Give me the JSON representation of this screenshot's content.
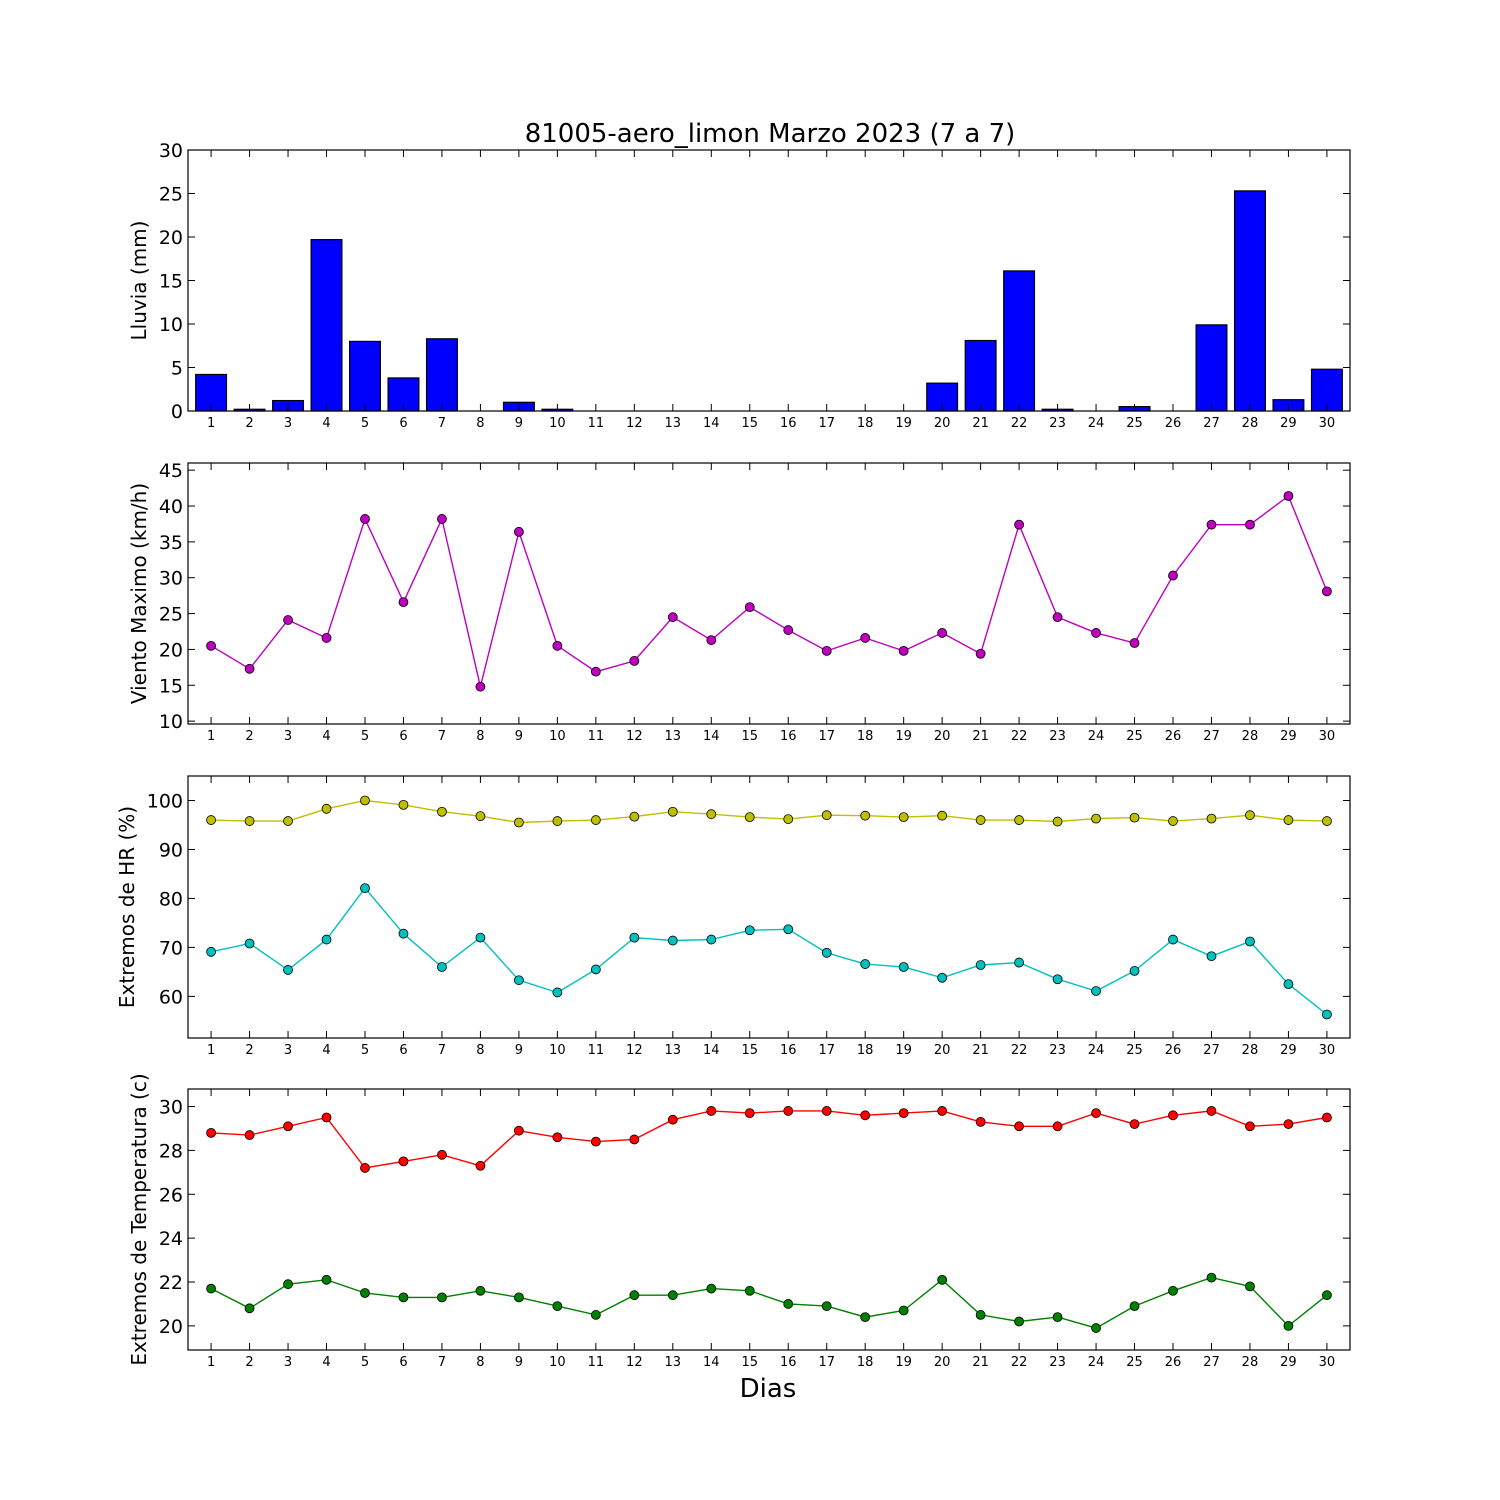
{
  "figure": {
    "title": "81005-aero_limon Marzo 2023  (7 a 7)",
    "xlabel": "Dias"
  },
  "chart_data": [
    {
      "type": "bar",
      "ylabel": "Lluvia (mm)",
      "ylim": [
        0,
        30
      ],
      "yticks": [
        0,
        5,
        10,
        15,
        20,
        25,
        30
      ],
      "categories": [
        1,
        2,
        3,
        4,
        5,
        6,
        7,
        8,
        9,
        10,
        11,
        12,
        13,
        14,
        15,
        16,
        17,
        18,
        19,
        20,
        21,
        22,
        23,
        24,
        25,
        26,
        27,
        28,
        29,
        30
      ],
      "series": [
        {
          "color": "#0000ff",
          "values": [
            4.2,
            0.2,
            1.2,
            19.7,
            8.0,
            3.8,
            8.3,
            0,
            1.0,
            0.2,
            0,
            0,
            0,
            0,
            0,
            0,
            0,
            0,
            0,
            3.2,
            8.1,
            16.1,
            0.2,
            0,
            0.5,
            0,
            9.9,
            25.3,
            1.3,
            4.8
          ]
        }
      ]
    },
    {
      "type": "line",
      "ylabel": "Viento Maximo (km/h)",
      "ylim": [
        9.6,
        46
      ],
      "yticks": [
        10,
        15,
        20,
        25,
        30,
        35,
        40,
        45
      ],
      "categories": [
        1,
        2,
        3,
        4,
        5,
        6,
        7,
        8,
        9,
        10,
        11,
        12,
        13,
        14,
        15,
        16,
        17,
        18,
        19,
        20,
        21,
        22,
        23,
        24,
        25,
        26,
        27,
        28,
        29,
        30
      ],
      "series": [
        {
          "color": "#bf00bf",
          "values": [
            20.5,
            17.3,
            24.1,
            21.6,
            38.2,
            26.6,
            38.2,
            14.8,
            36.4,
            20.5,
            16.9,
            18.4,
            24.5,
            21.3,
            25.9,
            22.7,
            19.8,
            21.6,
            19.8,
            22.3,
            19.4,
            37.4,
            24.5,
            22.3,
            20.9,
            30.3,
            37.4,
            37.4,
            41.4,
            28.1
          ]
        }
      ]
    },
    {
      "type": "line",
      "ylabel": "Extremos de HR (%)",
      "ylim": [
        51.5,
        105
      ],
      "yticks": [
        60,
        70,
        80,
        90,
        100
      ],
      "categories": [
        1,
        2,
        3,
        4,
        5,
        6,
        7,
        8,
        9,
        10,
        11,
        12,
        13,
        14,
        15,
        16,
        17,
        18,
        19,
        20,
        21,
        22,
        23,
        24,
        25,
        26,
        27,
        28,
        29,
        30
      ],
      "series": [
        {
          "color": "#bfbf00",
          "values": [
            96,
            95.8,
            95.8,
            98.3,
            100,
            99.1,
            97.7,
            96.8,
            95.5,
            95.8,
            96,
            96.7,
            97.7,
            97.2,
            96.6,
            96.2,
            97,
            96.9,
            96.6,
            96.9,
            96,
            96,
            95.7,
            96.3,
            96.5,
            95.8,
            96.3,
            97,
            96,
            95.8
          ]
        },
        {
          "color": "#00bfbf",
          "values": [
            69.1,
            70.8,
            65.4,
            71.6,
            82.1,
            72.8,
            66,
            72,
            63.3,
            60.8,
            65.5,
            72,
            71.4,
            71.6,
            73.5,
            73.7,
            68.9,
            66.6,
            66,
            63.8,
            66.4,
            66.9,
            63.5,
            61.1,
            65.2,
            71.6,
            68.2,
            71.2,
            62.5,
            56.3
          ]
        }
      ]
    },
    {
      "type": "line",
      "ylabel": "Extremos de Temperatura (c)",
      "ylim": [
        18.9,
        30.8
      ],
      "yticks": [
        20,
        22,
        24,
        26,
        28,
        30
      ],
      "categories": [
        1,
        2,
        3,
        4,
        5,
        6,
        7,
        8,
        9,
        10,
        11,
        12,
        13,
        14,
        15,
        16,
        17,
        18,
        19,
        20,
        21,
        22,
        23,
        24,
        25,
        26,
        27,
        28,
        29,
        30
      ],
      "series": [
        {
          "color": "#ff0000",
          "values": [
            28.8,
            28.7,
            29.1,
            29.5,
            27.2,
            27.5,
            27.8,
            27.3,
            28.9,
            28.6,
            28.4,
            28.5,
            29.4,
            29.8,
            29.7,
            29.8,
            29.8,
            29.6,
            29.7,
            29.8,
            29.3,
            29.1,
            29.1,
            29.7,
            29.2,
            29.6,
            29.8,
            29.1,
            29.2,
            29.5
          ]
        },
        {
          "color": "#008000",
          "values": [
            21.7,
            20.8,
            21.9,
            22.1,
            21.5,
            21.3,
            21.3,
            21.6,
            21.3,
            20.9,
            20.5,
            21.4,
            21.4,
            21.7,
            21.6,
            21,
            20.9,
            20.4,
            20.7,
            22.1,
            20.5,
            20.2,
            20.4,
            19.9,
            20.9,
            21.6,
            22.2,
            21.8,
            20,
            21.4
          ]
        }
      ]
    }
  ]
}
